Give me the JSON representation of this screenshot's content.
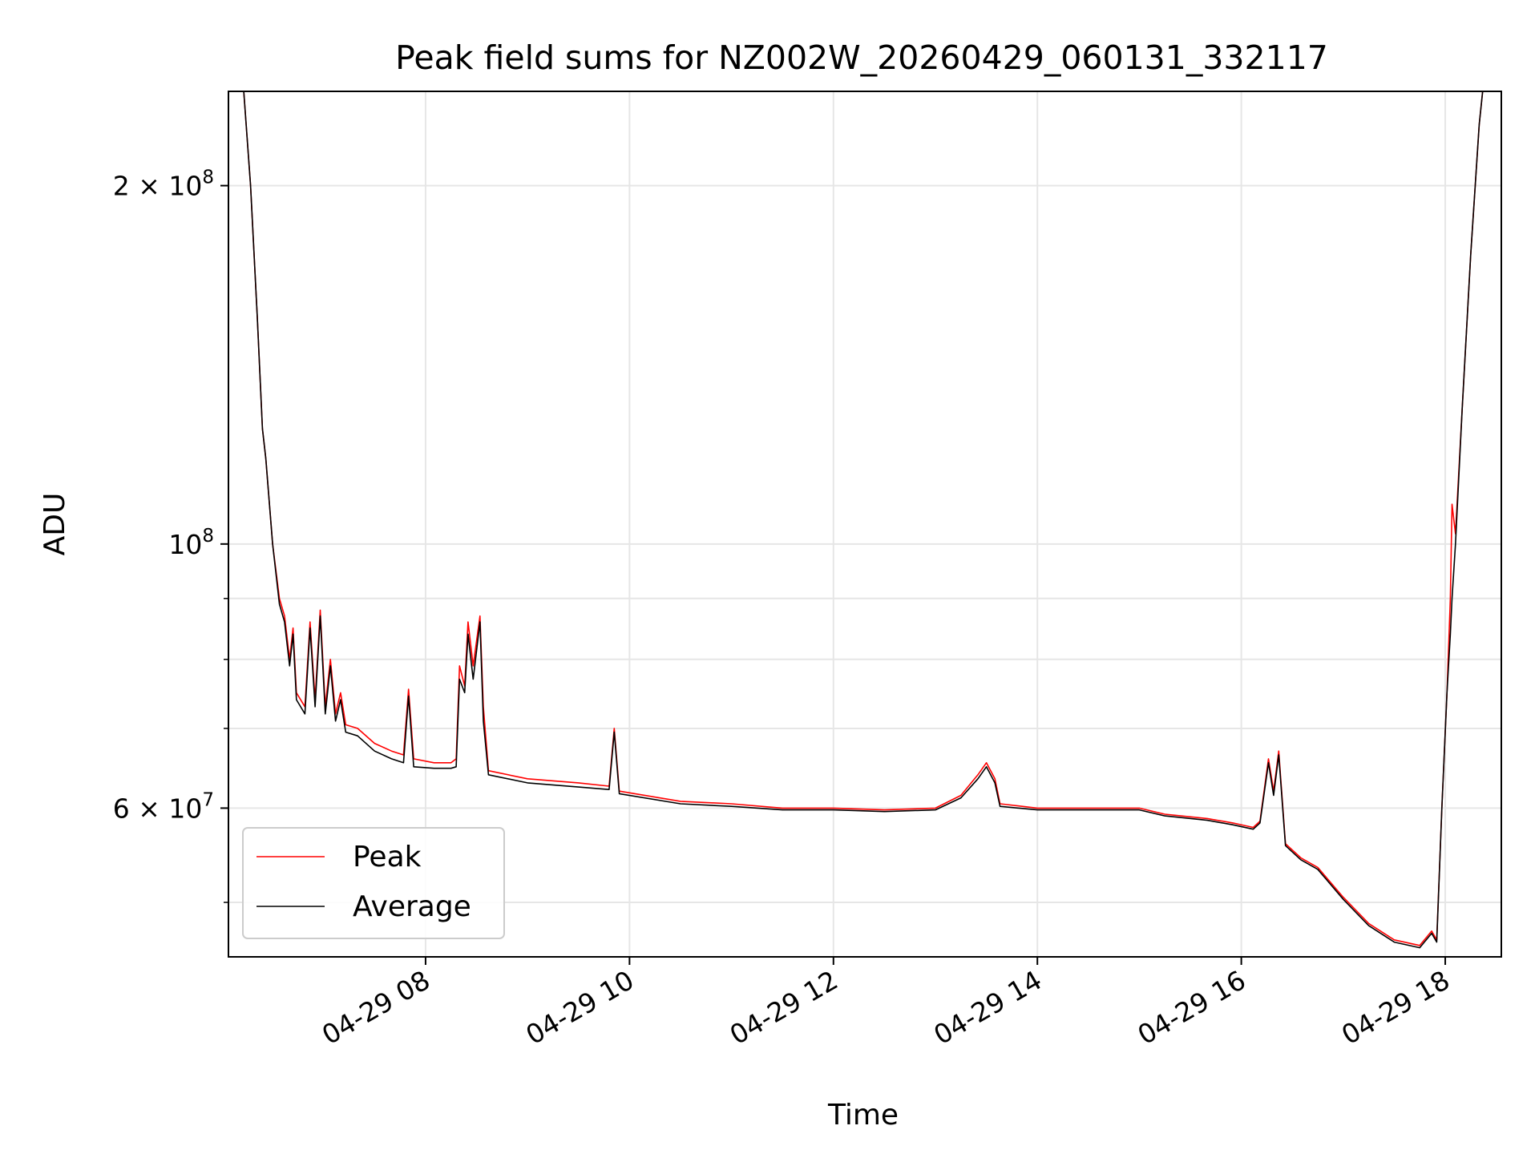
{
  "chart_data": {
    "type": "line",
    "title": "Peak field sums for NZ002W_20260429_060131_332117",
    "xlabel": "Time",
    "ylabel": "ADU",
    "y_scale": "log",
    "ylim": [
      45000000,
      240000000
    ],
    "xlim": [
      "2026-04-29 06:04",
      "2026-04-29 18:33"
    ],
    "x_ticks": [
      {
        "value": "2026-04-29 08:00",
        "label": "04-29 08"
      },
      {
        "value": "2026-04-29 10:00",
        "label": "04-29 10"
      },
      {
        "value": "2026-04-29 12:00",
        "label": "04-29 12"
      },
      {
        "value": "2026-04-29 14:00",
        "label": "04-29 14"
      },
      {
        "value": "2026-04-29 16:00",
        "label": "04-29 16"
      },
      {
        "value": "2026-04-29 18:00",
        "label": "04-29 18"
      }
    ],
    "y_ticks_major": [
      {
        "value": 60000000,
        "label": "6 × 10^7"
      },
      {
        "value": 100000000,
        "label": "10^8"
      },
      {
        "value": 200000000,
        "label": "2 × 10^8"
      }
    ],
    "y_ticks_minor": [
      50000000,
      70000000,
      80000000,
      90000000
    ],
    "grid": true,
    "legend_position": "lower-left",
    "series": [
      {
        "name": "Peak",
        "color": "#ff0000",
        "points": [
          [
            "2026-04-29 06:13",
            240000000
          ],
          [
            "2026-04-29 06:17",
            200000000
          ],
          [
            "2026-04-29 06:21",
            155000000
          ],
          [
            "2026-04-29 06:24",
            125000000
          ],
          [
            "2026-04-29 06:26",
            118000000
          ],
          [
            "2026-04-29 06:30",
            100000000
          ],
          [
            "2026-04-29 06:34",
            90000000
          ],
          [
            "2026-04-29 06:37",
            87000000
          ],
          [
            "2026-04-29 06:40",
            80000000
          ],
          [
            "2026-04-29 06:42",
            85000000
          ],
          [
            "2026-04-29 06:44",
            75000000
          ],
          [
            "2026-04-29 06:49",
            73000000
          ],
          [
            "2026-04-29 06:52",
            86000000
          ],
          [
            "2026-04-29 06:55",
            74000000
          ],
          [
            "2026-04-29 06:58",
            88000000
          ],
          [
            "2026-04-29 07:01",
            73000000
          ],
          [
            "2026-04-29 07:04",
            80000000
          ],
          [
            "2026-04-29 07:07",
            72000000
          ],
          [
            "2026-04-29 07:10",
            75000000
          ],
          [
            "2026-04-29 07:13",
            70500000
          ],
          [
            "2026-04-29 07:20",
            70000000
          ],
          [
            "2026-04-29 07:30",
            68000000
          ],
          [
            "2026-04-29 07:40",
            67000000
          ],
          [
            "2026-04-29 07:47",
            66500000
          ],
          [
            "2026-04-29 07:50",
            75500000
          ],
          [
            "2026-04-29 07:53",
            66000000
          ],
          [
            "2026-04-29 08:05",
            65500000
          ],
          [
            "2026-04-29 08:15",
            65500000
          ],
          [
            "2026-04-29 08:18",
            66000000
          ],
          [
            "2026-04-29 08:20",
            79000000
          ],
          [
            "2026-04-29 08:23",
            76000000
          ],
          [
            "2026-04-29 08:25",
            86000000
          ],
          [
            "2026-04-29 08:28",
            79000000
          ],
          [
            "2026-04-29 08:32",
            87000000
          ],
          [
            "2026-04-29 08:34",
            73000000
          ],
          [
            "2026-04-29 08:37",
            64500000
          ],
          [
            "2026-04-29 09:00",
            63500000
          ],
          [
            "2026-04-29 09:30",
            63000000
          ],
          [
            "2026-04-29 09:48",
            62600000
          ],
          [
            "2026-04-29 09:51",
            70000000
          ],
          [
            "2026-04-29 09:54",
            62000000
          ],
          [
            "2026-04-29 10:30",
            60800000
          ],
          [
            "2026-04-29 11:00",
            60500000
          ],
          [
            "2026-04-29 11:30",
            60000000
          ],
          [
            "2026-04-29 12:00",
            60000000
          ],
          [
            "2026-04-29 12:30",
            59800000
          ],
          [
            "2026-04-29 13:00",
            60000000
          ],
          [
            "2026-04-29 13:15",
            61500000
          ],
          [
            "2026-04-29 13:25",
            64000000
          ],
          [
            "2026-04-29 13:30",
            65500000
          ],
          [
            "2026-04-29 13:35",
            63500000
          ],
          [
            "2026-04-29 13:38",
            60500000
          ],
          [
            "2026-04-29 14:00",
            60000000
          ],
          [
            "2026-04-29 14:30",
            60000000
          ],
          [
            "2026-04-29 15:00",
            60000000
          ],
          [
            "2026-04-29 15:15",
            59300000
          ],
          [
            "2026-04-29 15:40",
            58800000
          ],
          [
            "2026-04-29 15:55",
            58300000
          ],
          [
            "2026-04-29 16:07",
            57800000
          ],
          [
            "2026-04-29 16:11",
            58500000
          ],
          [
            "2026-04-29 16:16",
            66000000
          ],
          [
            "2026-04-29 16:19",
            62000000
          ],
          [
            "2026-04-29 16:22",
            67000000
          ],
          [
            "2026-04-29 16:26",
            56000000
          ],
          [
            "2026-04-29 16:35",
            54500000
          ],
          [
            "2026-04-29 16:45",
            53500000
          ],
          [
            "2026-04-29 17:00",
            50500000
          ],
          [
            "2026-04-29 17:15",
            48000000
          ],
          [
            "2026-04-29 17:30",
            46500000
          ],
          [
            "2026-04-29 17:45",
            46000000
          ],
          [
            "2026-04-29 17:52",
            47300000
          ],
          [
            "2026-04-29 17:55",
            46500000
          ],
          [
            "2026-04-29 17:58",
            60000000
          ],
          [
            "2026-04-29 18:01",
            75000000
          ],
          [
            "2026-04-29 18:03",
            90000000
          ],
          [
            "2026-04-29 18:04",
            108000000
          ],
          [
            "2026-04-29 18:06",
            102000000
          ],
          [
            "2026-04-29 18:10",
            130000000
          ],
          [
            "2026-04-29 18:15",
            175000000
          ],
          [
            "2026-04-29 18:20",
            225000000
          ],
          [
            "2026-04-29 18:22",
            240000000
          ]
        ]
      },
      {
        "name": "Average",
        "color": "#000000",
        "points": [
          [
            "2026-04-29 06:13",
            240000000
          ],
          [
            "2026-04-29 06:17",
            200000000
          ],
          [
            "2026-04-29 06:21",
            155000000
          ],
          [
            "2026-04-29 06:24",
            125000000
          ],
          [
            "2026-04-29 06:26",
            118000000
          ],
          [
            "2026-04-29 06:30",
            100000000
          ],
          [
            "2026-04-29 06:34",
            89000000
          ],
          [
            "2026-04-29 06:37",
            86000000
          ],
          [
            "2026-04-29 06:40",
            79000000
          ],
          [
            "2026-04-29 06:42",
            84000000
          ],
          [
            "2026-04-29 06:44",
            74000000
          ],
          [
            "2026-04-29 06:49",
            72000000
          ],
          [
            "2026-04-29 06:52",
            85000000
          ],
          [
            "2026-04-29 06:55",
            73000000
          ],
          [
            "2026-04-29 06:58",
            87000000
          ],
          [
            "2026-04-29 07:01",
            72000000
          ],
          [
            "2026-04-29 07:04",
            79000000
          ],
          [
            "2026-04-29 07:07",
            71000000
          ],
          [
            "2026-04-29 07:10",
            74000000
          ],
          [
            "2026-04-29 07:13",
            69500000
          ],
          [
            "2026-04-29 07:20",
            69000000
          ],
          [
            "2026-04-29 07:30",
            67000000
          ],
          [
            "2026-04-29 07:40",
            66000000
          ],
          [
            "2026-04-29 07:47",
            65500000
          ],
          [
            "2026-04-29 07:50",
            74500000
          ],
          [
            "2026-04-29 07:53",
            65000000
          ],
          [
            "2026-04-29 08:05",
            64800000
          ],
          [
            "2026-04-29 08:15",
            64800000
          ],
          [
            "2026-04-29 08:18",
            65000000
          ],
          [
            "2026-04-29 08:20",
            77000000
          ],
          [
            "2026-04-29 08:23",
            75000000
          ],
          [
            "2026-04-29 08:25",
            84000000
          ],
          [
            "2026-04-29 08:28",
            77000000
          ],
          [
            "2026-04-29 08:32",
            86000000
          ],
          [
            "2026-04-29 08:34",
            71000000
          ],
          [
            "2026-04-29 08:37",
            64000000
          ],
          [
            "2026-04-29 09:00",
            63000000
          ],
          [
            "2026-04-29 09:30",
            62500000
          ],
          [
            "2026-04-29 09:48",
            62200000
          ],
          [
            "2026-04-29 09:51",
            69500000
          ],
          [
            "2026-04-29 09:54",
            61700000
          ],
          [
            "2026-04-29 10:30",
            60500000
          ],
          [
            "2026-04-29 11:00",
            60200000
          ],
          [
            "2026-04-29 11:30",
            59800000
          ],
          [
            "2026-04-29 12:00",
            59800000
          ],
          [
            "2026-04-29 12:30",
            59600000
          ],
          [
            "2026-04-29 13:00",
            59800000
          ],
          [
            "2026-04-29 13:15",
            61200000
          ],
          [
            "2026-04-29 13:25",
            63500000
          ],
          [
            "2026-04-29 13:30",
            65000000
          ],
          [
            "2026-04-29 13:35",
            63000000
          ],
          [
            "2026-04-29 13:38",
            60200000
          ],
          [
            "2026-04-29 14:00",
            59800000
          ],
          [
            "2026-04-29 14:30",
            59800000
          ],
          [
            "2026-04-29 15:00",
            59800000
          ],
          [
            "2026-04-29 15:15",
            59100000
          ],
          [
            "2026-04-29 15:40",
            58600000
          ],
          [
            "2026-04-29 15:55",
            58100000
          ],
          [
            "2026-04-29 16:07",
            57600000
          ],
          [
            "2026-04-29 16:11",
            58300000
          ],
          [
            "2026-04-29 16:16",
            65500000
          ],
          [
            "2026-04-29 16:19",
            61500000
          ],
          [
            "2026-04-29 16:22",
            66500000
          ],
          [
            "2026-04-29 16:26",
            55800000
          ],
          [
            "2026-04-29 16:35",
            54300000
          ],
          [
            "2026-04-29 16:45",
            53300000
          ],
          [
            "2026-04-29 17:00",
            50300000
          ],
          [
            "2026-04-29 17:15",
            47800000
          ],
          [
            "2026-04-29 17:30",
            46300000
          ],
          [
            "2026-04-29 17:45",
            45800000
          ],
          [
            "2026-04-29 17:52",
            47100000
          ],
          [
            "2026-04-29 17:55",
            46300000
          ],
          [
            "2026-04-29 17:58",
            60000000
          ],
          [
            "2026-04-29 18:01",
            75000000
          ],
          [
            "2026-04-29 18:03",
            84000000
          ],
          [
            "2026-04-29 18:04",
            90000000
          ],
          [
            "2026-04-29 18:06",
            100000000
          ],
          [
            "2026-04-29 18:10",
            130000000
          ],
          [
            "2026-04-29 18:15",
            175000000
          ],
          [
            "2026-04-29 18:20",
            225000000
          ],
          [
            "2026-04-29 18:22",
            240000000
          ]
        ]
      }
    ]
  }
}
